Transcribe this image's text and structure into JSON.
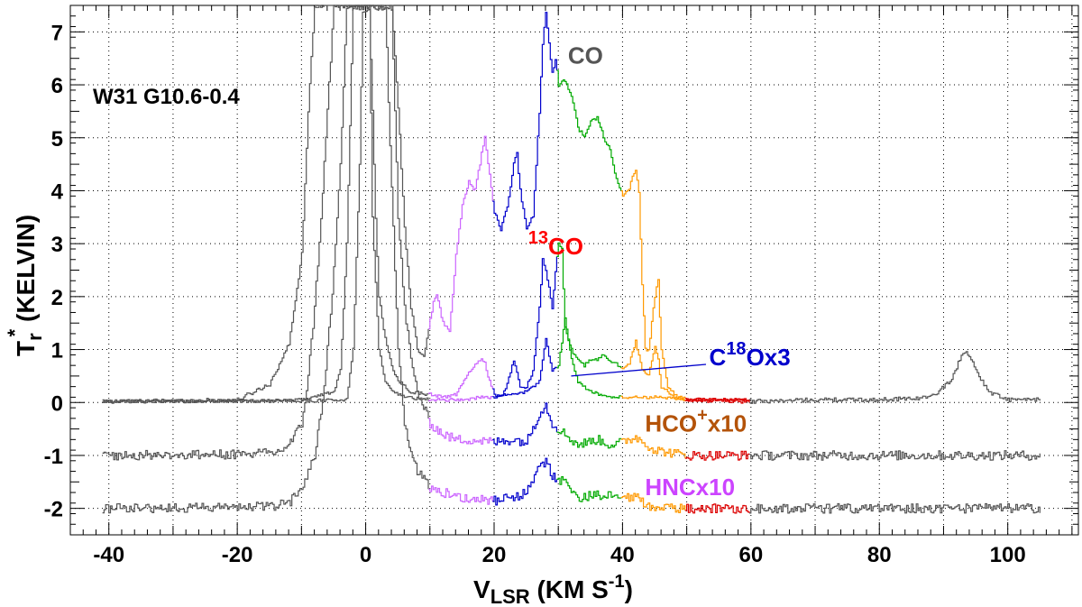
{
  "chart_data": {
    "type": "line",
    "title": "",
    "source_label": "W31 G10.6-0.4",
    "xlabel": {
      "main": "V",
      "sub": "LSR",
      "units_pre": "(KM S",
      "units_sup": "-1",
      "units_post": ")"
    },
    "ylabel": {
      "main": "T",
      "sub": "r",
      "sup": "*",
      "units": "(KELVIN)"
    },
    "xlim": [
      -46,
      111
    ],
    "ylim": [
      -2.5,
      7.5
    ],
    "x_ticks": [
      -40,
      -20,
      0,
      20,
      40,
      60,
      80,
      100
    ],
    "x_tick_labels": [
      "-40",
      "-20",
      "0",
      "20",
      "40",
      "60",
      "80",
      "100"
    ],
    "y_ticks": [
      -2,
      -1,
      0,
      1,
      2,
      3,
      4,
      5,
      6,
      7
    ],
    "y_tick_labels": [
      "-2",
      "-1",
      "0",
      "1",
      "2",
      "3",
      "4",
      "5",
      "6",
      "7"
    ],
    "grid": true,
    "segment_colors": [
      "#555555",
      "#cc66ff",
      "#0000cc",
      "#00aa00",
      "#ff9900",
      "#dd0000",
      "#555555"
    ],
    "segment_breaks": [
      10,
      20,
      30,
      40,
      50,
      60
    ],
    "series": [
      {
        "name": "CO",
        "offset": 0,
        "noise": 0.04,
        "range": [
          -41,
          105
        ],
        "points": [
          [
            -41,
            0.02
          ],
          [
            -30,
            0.03
          ],
          [
            -20,
            0.05
          ],
          [
            -15,
            0.35
          ],
          [
            -12,
            1.1
          ],
          [
            -10,
            2.8
          ],
          [
            -9,
            5.5
          ],
          [
            -8,
            7.5
          ],
          [
            4,
            7.5
          ],
          [
            5,
            5.6
          ],
          [
            6,
            3.3
          ],
          [
            7,
            1.8
          ],
          [
            8,
            1.0
          ],
          [
            9,
            0.85
          ],
          [
            10.5,
            1.9
          ],
          [
            11,
            2.05
          ],
          [
            12,
            1.5
          ],
          [
            13,
            1.35
          ],
          [
            14,
            2.8
          ],
          [
            15,
            3.7
          ],
          [
            16,
            4.2
          ],
          [
            17,
            4.0
          ],
          [
            18,
            4.7
          ],
          [
            18.5,
            5.05
          ],
          [
            19,
            4.5
          ],
          [
            20,
            3.6
          ],
          [
            21,
            3.25
          ],
          [
            22,
            3.7
          ],
          [
            23,
            4.5
          ],
          [
            23.5,
            4.7
          ],
          [
            24,
            4.0
          ],
          [
            25,
            3.3
          ],
          [
            26,
            3.5
          ],
          [
            27,
            5.5
          ],
          [
            27.5,
            6.8
          ],
          [
            28,
            7.4
          ],
          [
            29,
            6.2
          ],
          [
            29.5,
            6.5
          ],
          [
            30,
            6.0
          ],
          [
            31,
            6.1
          ],
          [
            32,
            5.8
          ],
          [
            33,
            5.2
          ],
          [
            34,
            5.0
          ],
          [
            35,
            5.3
          ],
          [
            36,
            5.4
          ],
          [
            37,
            5.0
          ],
          [
            38,
            4.8
          ],
          [
            39,
            4.2
          ],
          [
            40,
            3.9
          ],
          [
            41,
            4.0
          ],
          [
            41.5,
            4.3
          ],
          [
            42,
            4.4
          ],
          [
            42.5,
            4.0
          ],
          [
            43,
            2.2
          ],
          [
            43.5,
            1.0
          ],
          [
            44,
            1.0
          ],
          [
            45,
            2.0
          ],
          [
            45.5,
            2.3
          ],
          [
            46,
            1.0
          ],
          [
            47,
            0.3
          ],
          [
            48,
            0.15
          ],
          [
            50,
            0.05
          ],
          [
            60,
            0.02
          ],
          [
            70,
            0.05
          ],
          [
            80,
            0.05
          ],
          [
            88,
            0.1
          ],
          [
            91,
            0.4
          ],
          [
            93,
            0.95
          ],
          [
            94,
            0.9
          ],
          [
            95,
            0.6
          ],
          [
            97,
            0.2
          ],
          [
            100,
            0.05
          ],
          [
            105,
            0.05
          ]
        ]
      },
      {
        "name": "13CO",
        "offset": 0,
        "noise": 0.03,
        "range": [
          -41,
          60
        ],
        "points": [
          [
            -41,
            0.02
          ],
          [
            -20,
            0.03
          ],
          [
            -10,
            0.05
          ],
          [
            -5,
            0.2
          ],
          [
            -4,
            0.6
          ],
          [
            -3,
            3.0
          ],
          [
            -2,
            7.5
          ],
          [
            0.5,
            7.5
          ],
          [
            1.5,
            3.5
          ],
          [
            2,
            2.0
          ],
          [
            3,
            1.2
          ],
          [
            4,
            0.7
          ],
          [
            5,
            0.4
          ],
          [
            7,
            0.2
          ],
          [
            10,
            0.15
          ],
          [
            12,
            0.1
          ],
          [
            14,
            0.15
          ],
          [
            15,
            0.35
          ],
          [
            16,
            0.55
          ],
          [
            17,
            0.7
          ],
          [
            18,
            0.85
          ],
          [
            18.5,
            0.75
          ],
          [
            19,
            0.5
          ],
          [
            20,
            0.15
          ],
          [
            21,
            0.1
          ],
          [
            22,
            0.35
          ],
          [
            23,
            0.8
          ],
          [
            23.5,
            0.55
          ],
          [
            24,
            0.3
          ],
          [
            25,
            0.3
          ],
          [
            26,
            0.6
          ],
          [
            27,
            1.8
          ],
          [
            27.5,
            2.7
          ],
          [
            28,
            2.5
          ],
          [
            29,
            1.8
          ],
          [
            29.5,
            2.5
          ],
          [
            30,
            3.0
          ],
          [
            30.5,
            2.9
          ],
          [
            31,
            1.4
          ],
          [
            32,
            1.0
          ],
          [
            33,
            0.8
          ],
          [
            34,
            0.7
          ],
          [
            35,
            0.8
          ],
          [
            36,
            0.8
          ],
          [
            37,
            0.9
          ],
          [
            38,
            0.8
          ],
          [
            40,
            0.65
          ],
          [
            41,
            0.75
          ],
          [
            42,
            1.15
          ],
          [
            43,
            0.6
          ],
          [
            44,
            0.5
          ],
          [
            45,
            1.05
          ],
          [
            45.5,
            0.8
          ],
          [
            46,
            0.3
          ],
          [
            48,
            0.1
          ],
          [
            50,
            0.05
          ],
          [
            60,
            0.05
          ]
        ]
      },
      {
        "name": "C18Ox3",
        "offset": 0,
        "noise": 0.03,
        "range": [
          -41,
          60
        ],
        "points": [
          [
            -41,
            0.02
          ],
          [
            -10,
            0.03
          ],
          [
            -3,
            0.05
          ],
          [
            -2,
            1.0
          ],
          [
            -1,
            4.5
          ],
          [
            -0.5,
            7.4
          ],
          [
            0.5,
            7.4
          ],
          [
            1,
            3.5
          ],
          [
            2,
            1.0
          ],
          [
            3,
            0.4
          ],
          [
            4,
            0.2
          ],
          [
            6,
            0.1
          ],
          [
            10,
            0.05
          ],
          [
            15,
            0.05
          ],
          [
            18,
            0.1
          ],
          [
            20,
            0.1
          ],
          [
            22,
            0.15
          ],
          [
            25,
            0.2
          ],
          [
            27,
            0.4
          ],
          [
            28,
            1.2
          ],
          [
            29,
            0.6
          ],
          [
            30,
            0.7
          ],
          [
            31,
            1.6
          ],
          [
            32,
            0.8
          ],
          [
            33,
            0.4
          ],
          [
            35,
            0.2
          ],
          [
            38,
            0.1
          ],
          [
            40,
            0.1
          ],
          [
            45,
            0.1
          ],
          [
            50,
            0.05
          ],
          [
            60,
            0.05
          ]
        ]
      },
      {
        "name": "HCO+x10",
        "offset": -1,
        "noise": 0.09,
        "range": [
          -41,
          105
        ],
        "points": [
          [
            -41,
            0.0
          ],
          [
            -20,
            0.02
          ],
          [
            -14,
            0.05
          ],
          [
            -12,
            0.2
          ],
          [
            -10,
            0.6
          ],
          [
            -9,
            1.5
          ],
          [
            -8,
            2.8
          ],
          [
            -7,
            4.5
          ],
          [
            -6,
            6.5
          ],
          [
            -5,
            8.5
          ],
          [
            4,
            8.5
          ],
          [
            5,
            4.5
          ],
          [
            6,
            2.8
          ],
          [
            7,
            1.8
          ],
          [
            8,
            1.2
          ],
          [
            10,
            0.6
          ],
          [
            12,
            0.4
          ],
          [
            14,
            0.3
          ],
          [
            16,
            0.3
          ],
          [
            20,
            0.25
          ],
          [
            23,
            0.3
          ],
          [
            25,
            0.25
          ],
          [
            27,
            0.8
          ],
          [
            28,
            0.95
          ],
          [
            29,
            0.6
          ],
          [
            31,
            0.4
          ],
          [
            33,
            0.2
          ],
          [
            36,
            0.3
          ],
          [
            38,
            0.2
          ],
          [
            40,
            0.25
          ],
          [
            42,
            0.35
          ],
          [
            45,
            0.1
          ],
          [
            50,
            0.0
          ],
          [
            60,
            0.0
          ],
          [
            105,
            0.0
          ]
        ]
      },
      {
        "name": "HNCx10",
        "offset": -2,
        "noise": 0.09,
        "range": [
          -41,
          105
        ],
        "points": [
          [
            -41,
            0.0
          ],
          [
            -20,
            0.02
          ],
          [
            -14,
            0.05
          ],
          [
            -12,
            0.1
          ],
          [
            -10,
            0.4
          ],
          [
            -8,
            1.0
          ],
          [
            -7,
            1.8
          ],
          [
            -6,
            3.0
          ],
          [
            -5,
            4.5
          ],
          [
            -4,
            6.5
          ],
          [
            -3,
            9.5
          ],
          [
            3,
            9.5
          ],
          [
            4,
            6.0
          ],
          [
            5,
            3.0
          ],
          [
            6,
            1.6
          ],
          [
            7,
            1.1
          ],
          [
            8,
            0.7
          ],
          [
            10,
            0.4
          ],
          [
            12,
            0.3
          ],
          [
            15,
            0.2
          ],
          [
            20,
            0.15
          ],
          [
            23,
            0.2
          ],
          [
            25,
            0.3
          ],
          [
            27,
            0.8
          ],
          [
            28,
            0.9
          ],
          [
            29,
            0.6
          ],
          [
            31,
            0.5
          ],
          [
            33,
            0.2
          ],
          [
            36,
            0.25
          ],
          [
            40,
            0.2
          ],
          [
            42,
            0.2
          ],
          [
            45,
            0.0
          ],
          [
            60,
            0.0
          ],
          [
            105,
            0.0
          ]
        ]
      }
    ],
    "annotations": [
      {
        "text": "CO",
        "sup": "",
        "pre_sup": "",
        "color": "#555555",
        "x": 31.5,
        "y": 6.4
      },
      {
        "text": "CO",
        "pre_sup": "13",
        "sup": "",
        "color": "#ff0000",
        "x": 25.3,
        "y": 2.8
      },
      {
        "text": "Ox3",
        "pre": "C",
        "mid_sup": "18",
        "color": "#0000cc",
        "x": 53.5,
        "y": 0.7
      },
      {
        "text": "x10",
        "pre": "HCO",
        "mid_sup": "+",
        "color": "#b45309",
        "x": 43.5,
        "y": -0.55
      },
      {
        "text": "HNCx10",
        "pre": "",
        "mid_sup": "",
        "color": "#cc44ff",
        "x": 43.5,
        "y": -1.75
      }
    ],
    "pointer_line": {
      "color": "#0000cc",
      "from": [
        32,
        0.5
      ],
      "to": [
        53,
        0.72
      ]
    }
  }
}
